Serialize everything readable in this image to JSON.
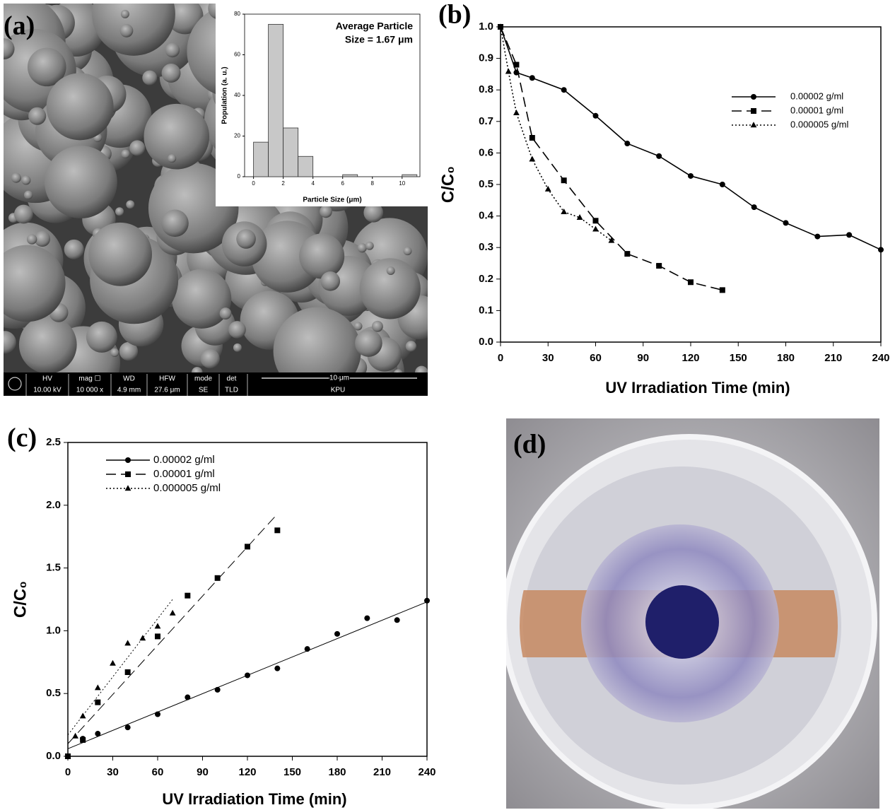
{
  "chart_data": [
    {
      "type": "histogram",
      "panel_label": "(a)",
      "annotation": [
        "Average Particle",
        "Size = 1.67 μm"
      ],
      "x_label": "Particle Size (μm)",
      "y_label": "Population (a. u.)",
      "bins": [
        0,
        1,
        2,
        3,
        4,
        5,
        6,
        7,
        8,
        9,
        10,
        11
      ],
      "values": [
        17,
        75,
        24,
        10,
        0,
        0,
        1,
        0,
        0,
        0,
        1
      ],
      "color": "#c8c8c8",
      "xlim": [
        -0.6,
        11.2
      ],
      "xticks": [
        0,
        2,
        4,
        6,
        8,
        10
      ],
      "ylim": [
        0,
        80
      ],
      "yticks": [
        0,
        20,
        40,
        60,
        80
      ],
      "sem_info": {
        "headers": [
          "HV",
          "mag ☐",
          "WD",
          "HFW",
          "mode",
          "det"
        ],
        "values": [
          "10.00 kV",
          "10 000 x",
          "4.9 mm",
          "27.6 μm",
          "SE",
          "TLD"
        ],
        "scale_bar": "10 μm",
        "lab": "KPU"
      }
    },
    {
      "type": "line",
      "panel_label": "(b)",
      "x_label": "UV Irradiation Time (min)",
      "y_label": "C/C₀",
      "xlim": [
        0,
        240
      ],
      "xticks": [
        0,
        30,
        60,
        90,
        120,
        150,
        180,
        210,
        240
      ],
      "ylim": [
        0,
        1.0
      ],
      "yticks": [
        {
          "value": 0,
          "label": "0.0"
        },
        0.1,
        0.2,
        0.3,
        0.4,
        0.5,
        0.6,
        0.7,
        0.8,
        0.9,
        {
          "value": 1,
          "label": "1.0"
        }
      ],
      "series": [
        {
          "name": "0.00002 g/ml",
          "color": "#000000",
          "marker": "circle",
          "dash": "solid",
          "x": [
            0,
            10,
            20,
            40,
            60,
            80,
            100,
            120,
            140,
            160,
            180,
            200,
            220,
            240
          ],
          "values": [
            1.0,
            0.855,
            0.838,
            0.8,
            0.718,
            0.63,
            0.59,
            0.527,
            0.5,
            0.428,
            0.378,
            0.335,
            0.34,
            0.293
          ]
        },
        {
          "name": "0.00001 g/ml",
          "color": "#000000",
          "marker": "square",
          "dash": "dash",
          "x": [
            0,
            10,
            20,
            40,
            60,
            80,
            100,
            120,
            140
          ],
          "values": [
            1.0,
            0.88,
            0.648,
            0.513,
            0.385,
            0.28,
            0.242,
            0.19,
            0.165
          ]
        },
        {
          "name": "0.000005 g/ml",
          "color": "#000000",
          "marker": "triangle",
          "dash": "dot",
          "x": [
            0,
            5,
            10,
            20,
            30,
            40,
            50,
            60,
            70
          ],
          "values": [
            1.0,
            0.858,
            0.727,
            0.58,
            0.485,
            0.413,
            0.395,
            0.358,
            0.322
          ]
        }
      ]
    },
    {
      "type": "scatter",
      "panel_label": "(c)",
      "x_label": "UV Irradiation Time (min)",
      "y_label": "C/C₀",
      "xlim": [
        0,
        240
      ],
      "xticks": [
        0,
        30,
        60,
        90,
        120,
        150,
        180,
        210,
        240
      ],
      "ylim": [
        0,
        2.5
      ],
      "yticks": [
        {
          "value": 0,
          "label": "0.0"
        },
        0.5,
        {
          "value": 1,
          "label": "1.0"
        },
        1.5,
        {
          "value": 2,
          "label": "2.0"
        },
        2.5
      ],
      "series": [
        {
          "name": "0.00002 g/ml",
          "color": "#000000",
          "marker": "circle",
          "dash": "solid",
          "x": [
            0,
            10,
            20,
            40,
            60,
            80,
            100,
            120,
            140,
            160,
            180,
            200,
            220,
            240
          ],
          "values": [
            0,
            0.14,
            0.18,
            0.23,
            0.335,
            0.47,
            0.53,
            0.645,
            0.7,
            0.855,
            0.975,
            1.1,
            1.085,
            1.24
          ],
          "fit": {
            "x": [
              0,
              240
            ],
            "y": [
              0.06,
              1.23
            ]
          }
        },
        {
          "name": "0.00001 g/ml",
          "color": "#000000",
          "marker": "square",
          "dash": "dash",
          "x": [
            0,
            10,
            20,
            40,
            60,
            80,
            100,
            120,
            140
          ],
          "values": [
            0,
            0.13,
            0.43,
            0.67,
            0.955,
            1.28,
            1.42,
            1.67,
            1.8
          ],
          "fit": {
            "x": [
              0,
              140
            ],
            "y": [
              0.1,
              1.93
            ]
          }
        },
        {
          "name": "0.000005 g/ml",
          "color": "#000000",
          "marker": "triangle",
          "dash": "dot",
          "x": [
            0,
            5,
            10,
            20,
            30,
            40,
            50,
            60,
            70
          ],
          "values": [
            0,
            0.16,
            0.32,
            0.545,
            0.74,
            0.9,
            0.94,
            1.035,
            1.14
          ],
          "fit": {
            "x": [
              0,
              70
            ],
            "y": [
              0.17,
              1.25
            ]
          }
        }
      ]
    }
  ],
  "photo": {
    "panel_label": "(d)"
  }
}
